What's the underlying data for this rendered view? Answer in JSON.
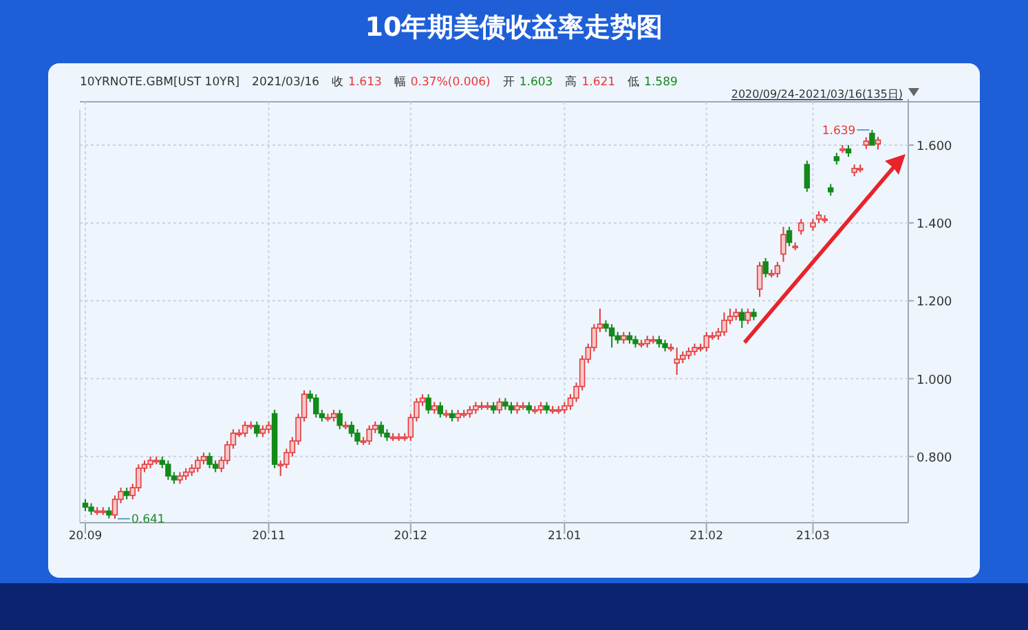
{
  "chart_data": {
    "type": "candlestick",
    "title": "10年期美债收益率走势图",
    "annotations": [
      "10YRNOTE.GBM[UST 10YR]",
      "2021/03/16",
      "收",
      "1.613",
      "幅",
      "0.37%(0.006)",
      "开",
      "1.603",
      "高",
      "1.621",
      "低",
      "1.589",
      "2020/09/24-2021/03/16(135日)",
      "1.639",
      "0.641"
    ],
    "categories": [
      "20.09",
      null,
      null,
      null,
      null,
      null,
      null,
      null,
      null,
      null,
      null,
      null,
      null,
      null,
      null,
      null,
      null,
      null,
      null,
      null,
      null,
      null,
      null,
      null,
      null,
      null,
      null,
      null,
      null,
      null,
      null,
      "20.11",
      null,
      null,
      null,
      null,
      null,
      null,
      null,
      null,
      null,
      null,
      null,
      null,
      null,
      null,
      null,
      null,
      null,
      null,
      null,
      null,
      null,
      null,
      null,
      "20.12",
      null,
      null,
      null,
      null,
      null,
      null,
      null,
      null,
      null,
      null,
      null,
      null,
      null,
      null,
      null,
      null,
      null,
      null,
      null,
      null,
      null,
      null,
      null,
      null,
      null,
      "21.01",
      null,
      null,
      null,
      null,
      null,
      null,
      null,
      null,
      null,
      null,
      null,
      null,
      null,
      null,
      null,
      null,
      null,
      null,
      null,
      null,
      null,
      null,
      null,
      "21.02",
      null,
      null,
      null,
      null,
      null,
      null,
      null,
      null,
      null,
      null,
      null,
      null,
      null,
      null,
      null,
      null,
      null,
      "21.03",
      null,
      null,
      null,
      null,
      null,
      null,
      null,
      null,
      null,
      null,
      null
    ],
    "ohlc": [
      [
        0.68,
        0.69,
        0.66,
        0.67
      ],
      [
        0.67,
        0.68,
        0.65,
        0.66
      ],
      [
        0.66,
        0.67,
        0.65,
        0.66
      ],
      [
        0.66,
        0.67,
        0.65,
        0.66
      ],
      [
        0.66,
        0.67,
        0.641,
        0.65
      ],
      [
        0.65,
        0.7,
        0.64,
        0.69
      ],
      [
        0.69,
        0.72,
        0.68,
        0.71
      ],
      [
        0.71,
        0.72,
        0.69,
        0.7
      ],
      [
        0.7,
        0.73,
        0.69,
        0.72
      ],
      [
        0.72,
        0.78,
        0.71,
        0.77
      ],
      [
        0.77,
        0.79,
        0.76,
        0.78
      ],
      [
        0.78,
        0.8,
        0.77,
        0.79
      ],
      [
        0.79,
        0.8,
        0.78,
        0.79
      ],
      [
        0.79,
        0.8,
        0.77,
        0.78
      ],
      [
        0.78,
        0.79,
        0.74,
        0.75
      ],
      [
        0.75,
        0.76,
        0.73,
        0.74
      ],
      [
        0.74,
        0.76,
        0.73,
        0.75
      ],
      [
        0.75,
        0.77,
        0.74,
        0.76
      ],
      [
        0.76,
        0.78,
        0.75,
        0.77
      ],
      [
        0.77,
        0.8,
        0.76,
        0.79
      ],
      [
        0.79,
        0.81,
        0.78,
        0.8
      ],
      [
        0.8,
        0.81,
        0.77,
        0.78
      ],
      [
        0.78,
        0.79,
        0.76,
        0.77
      ],
      [
        0.77,
        0.8,
        0.76,
        0.79
      ],
      [
        0.79,
        0.84,
        0.78,
        0.83
      ],
      [
        0.83,
        0.87,
        0.82,
        0.86
      ],
      [
        0.86,
        0.87,
        0.85,
        0.86
      ],
      [
        0.86,
        0.89,
        0.85,
        0.88
      ],
      [
        0.88,
        0.89,
        0.87,
        0.88
      ],
      [
        0.88,
        0.89,
        0.85,
        0.86
      ],
      [
        0.86,
        0.88,
        0.85,
        0.87
      ],
      [
        0.87,
        0.89,
        0.86,
        0.88
      ],
      [
        0.91,
        0.92,
        0.77,
        0.78
      ],
      [
        0.78,
        0.79,
        0.75,
        0.78
      ],
      [
        0.78,
        0.82,
        0.77,
        0.81
      ],
      [
        0.81,
        0.85,
        0.8,
        0.84
      ],
      [
        0.84,
        0.91,
        0.83,
        0.9
      ],
      [
        0.9,
        0.97,
        0.89,
        0.96
      ],
      [
        0.96,
        0.97,
        0.94,
        0.95
      ],
      [
        0.95,
        0.96,
        0.9,
        0.91
      ],
      [
        0.91,
        0.92,
        0.89,
        0.9
      ],
      [
        0.9,
        0.91,
        0.89,
        0.9
      ],
      [
        0.9,
        0.92,
        0.89,
        0.91
      ],
      [
        0.91,
        0.92,
        0.87,
        0.88
      ],
      [
        0.88,
        0.89,
        0.87,
        0.88
      ],
      [
        0.88,
        0.89,
        0.85,
        0.86
      ],
      [
        0.86,
        0.87,
        0.83,
        0.84
      ],
      [
        0.84,
        0.85,
        0.83,
        0.84
      ],
      [
        0.84,
        0.88,
        0.83,
        0.87
      ],
      [
        0.87,
        0.89,
        0.86,
        0.88
      ],
      [
        0.88,
        0.89,
        0.85,
        0.86
      ],
      [
        0.86,
        0.87,
        0.84,
        0.85
      ],
      [
        0.85,
        0.86,
        0.84,
        0.85
      ],
      [
        0.85,
        0.86,
        0.84,
        0.85
      ],
      [
        0.85,
        0.86,
        0.84,
        0.85
      ],
      [
        0.85,
        0.91,
        0.84,
        0.9
      ],
      [
        0.9,
        0.95,
        0.89,
        0.94
      ],
      [
        0.94,
        0.96,
        0.93,
        0.95
      ],
      [
        0.95,
        0.96,
        0.91,
        0.92
      ],
      [
        0.92,
        0.94,
        0.91,
        0.93
      ],
      [
        0.93,
        0.94,
        0.9,
        0.91
      ],
      [
        0.91,
        0.92,
        0.9,
        0.91
      ],
      [
        0.91,
        0.92,
        0.89,
        0.9
      ],
      [
        0.9,
        0.92,
        0.89,
        0.91
      ],
      [
        0.91,
        0.92,
        0.9,
        0.91
      ],
      [
        0.91,
        0.93,
        0.9,
        0.92
      ],
      [
        0.92,
        0.94,
        0.91,
        0.93
      ],
      [
        0.93,
        0.94,
        0.92,
        0.93
      ],
      [
        0.93,
        0.94,
        0.92,
        0.93
      ],
      [
        0.93,
        0.94,
        0.91,
        0.92
      ],
      [
        0.92,
        0.95,
        0.91,
        0.94
      ],
      [
        0.94,
        0.95,
        0.92,
        0.93
      ],
      [
        0.93,
        0.94,
        0.91,
        0.92
      ],
      [
        0.92,
        0.94,
        0.91,
        0.93
      ],
      [
        0.93,
        0.94,
        0.92,
        0.93
      ],
      [
        0.93,
        0.94,
        0.91,
        0.92
      ],
      [
        0.92,
        0.93,
        0.91,
        0.92
      ],
      [
        0.92,
        0.94,
        0.91,
        0.93
      ],
      [
        0.93,
        0.94,
        0.91,
        0.92
      ],
      [
        0.92,
        0.93,
        0.91,
        0.92
      ],
      [
        0.92,
        0.93,
        0.91,
        0.92
      ],
      [
        0.92,
        0.94,
        0.91,
        0.93
      ],
      [
        0.93,
        0.96,
        0.92,
        0.95
      ],
      [
        0.95,
        0.99,
        0.94,
        0.98
      ],
      [
        0.98,
        1.06,
        0.97,
        1.05
      ],
      [
        1.05,
        1.09,
        1.04,
        1.08
      ],
      [
        1.08,
        1.14,
        1.07,
        1.13
      ],
      [
        1.13,
        1.18,
        1.12,
        1.14
      ],
      [
        1.14,
        1.15,
        1.12,
        1.13
      ],
      [
        1.13,
        1.14,
        1.08,
        1.11
      ],
      [
        1.11,
        1.12,
        1.09,
        1.1
      ],
      [
        1.1,
        1.12,
        1.09,
        1.11
      ],
      [
        1.11,
        1.12,
        1.09,
        1.1
      ],
      [
        1.1,
        1.11,
        1.08,
        1.09
      ],
      [
        1.09,
        1.1,
        1.08,
        1.09
      ],
      [
        1.09,
        1.11,
        1.08,
        1.1
      ],
      [
        1.1,
        1.11,
        1.09,
        1.1
      ],
      [
        1.1,
        1.11,
        1.08,
        1.09
      ],
      [
        1.09,
        1.1,
        1.07,
        1.08
      ],
      [
        1.08,
        1.09,
        1.07,
        1.08
      ],
      [
        1.04,
        1.08,
        1.01,
        1.05
      ],
      [
        1.05,
        1.07,
        1.04,
        1.06
      ],
      [
        1.06,
        1.08,
        1.05,
        1.07
      ],
      [
        1.07,
        1.09,
        1.06,
        1.08
      ],
      [
        1.08,
        1.09,
        1.07,
        1.08
      ],
      [
        1.08,
        1.12,
        1.07,
        1.11
      ],
      [
        1.11,
        1.12,
        1.1,
        1.11
      ],
      [
        1.11,
        1.13,
        1.1,
        1.12
      ],
      [
        1.12,
        1.17,
        1.11,
        1.15
      ],
      [
        1.15,
        1.18,
        1.14,
        1.16
      ],
      [
        1.16,
        1.18,
        1.15,
        1.17
      ],
      [
        1.17,
        1.18,
        1.13,
        1.15
      ],
      [
        1.15,
        1.18,
        1.14,
        1.17
      ],
      [
        1.17,
        1.18,
        1.15,
        1.16
      ],
      [
        1.23,
        1.3,
        1.21,
        1.29
      ],
      [
        1.3,
        1.31,
        1.26,
        1.27
      ],
      [
        1.27,
        1.28,
        1.26,
        1.27
      ],
      [
        1.27,
        1.3,
        1.26,
        1.29
      ],
      [
        1.32,
        1.39,
        1.3,
        1.37
      ],
      [
        1.38,
        1.39,
        1.34,
        1.35
      ],
      [
        1.34,
        1.35,
        1.33,
        1.34
      ],
      [
        1.38,
        1.41,
        1.37,
        1.4
      ],
      [
        1.55,
        1.56,
        1.48,
        1.49
      ],
      [
        1.39,
        1.41,
        1.38,
        1.4
      ],
      [
        1.41,
        1.43,
        1.4,
        1.42
      ],
      [
        1.41,
        1.42,
        1.4,
        1.41
      ],
      [
        1.49,
        1.5,
        1.47,
        1.48
      ],
      [
        1.57,
        1.58,
        1.55,
        1.56
      ],
      [
        1.59,
        1.6,
        1.58,
        1.59
      ],
      [
        1.59,
        1.6,
        1.57,
        1.58
      ],
      [
        1.53,
        1.55,
        1.52,
        1.54
      ],
      [
        1.54,
        1.55,
        1.53,
        1.54
      ],
      [
        1.6,
        1.62,
        1.59,
        1.61
      ],
      [
        1.63,
        1.639,
        1.6,
        1.6
      ],
      [
        1.603,
        1.621,
        1.589,
        1.613
      ]
    ],
    "ylim": [
      0.63,
      1.69
    ],
    "yticks": [
      {
        "value": 0.8,
        "label": "0.800"
      },
      {
        "value": 1.0,
        "label": "1.000"
      },
      {
        "value": 1.2,
        "label": "1.200"
      },
      {
        "value": 1.4,
        "label": "1.400"
      },
      {
        "value": 1.6,
        "label": "1.600"
      }
    ],
    "grid": true
  }
}
